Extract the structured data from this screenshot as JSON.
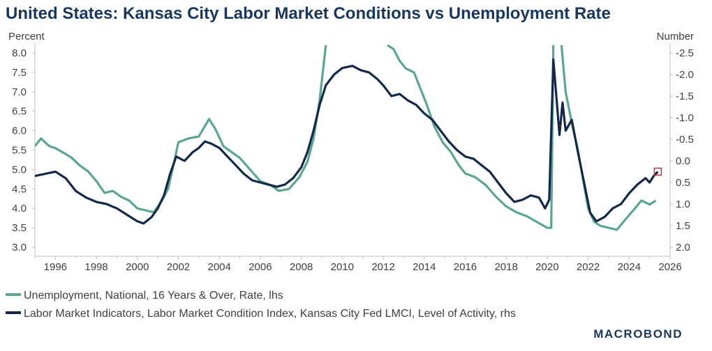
{
  "title": "United States: Kansas City Labor Market Conditions vs Unemployment Rate",
  "colors": {
    "title": "#17375e",
    "teal": "#5aa68e",
    "navy": "#13294b",
    "marker": "#d32f2f"
  },
  "legend": [
    {
      "label": "Unemployment, National, 16 Years & Over, Rate, lhs",
      "color": "#5aa68e"
    },
    {
      "label": "Labor Market Indicators, Labor Market Condition Index, Kansas City Fed LMCI, Level of Activity, rhs",
      "color": "#13294b"
    }
  ],
  "brand": "MACROBOND",
  "chart_data": {
    "type": "line",
    "xlim": [
      1995,
      2026
    ],
    "x_ticks": [
      "1996",
      "1998",
      "2000",
      "2002",
      "2004",
      "2006",
      "2008",
      "2010",
      "2012",
      "2014",
      "2016",
      "2018",
      "2020",
      "2022",
      "2024",
      "2026"
    ],
    "left_axis": {
      "label": "Percent",
      "ylim": [
        3.0,
        8.0
      ],
      "ticks": [
        "8.0",
        "7.5",
        "7.0",
        "6.5",
        "6.0",
        "5.5",
        "5.0",
        "4.5",
        "4.0",
        "3.5",
        "3.0"
      ]
    },
    "right_axis": {
      "label": "Number",
      "inverted": true,
      "ylim": [
        -2.5,
        2.0
      ],
      "ticks": [
        "-2.5",
        "-2.0",
        "-1.5",
        "-1.0",
        "-0.5",
        "0.0",
        "0.5",
        "1.0",
        "1.5",
        "2.0"
      ]
    },
    "series": [
      {
        "name": "Unemployment, National, 16 Years & Over, Rate, lhs",
        "axis": "left",
        "points": [
          [
            1995.0,
            5.6
          ],
          [
            1995.3,
            5.8
          ],
          [
            1995.7,
            5.6
          ],
          [
            1996.0,
            5.55
          ],
          [
            1996.5,
            5.4
          ],
          [
            1996.8,
            5.3
          ],
          [
            1997.2,
            5.1
          ],
          [
            1997.6,
            4.95
          ],
          [
            1998.0,
            4.7
          ],
          [
            1998.4,
            4.4
          ],
          [
            1998.8,
            4.45
          ],
          [
            1999.2,
            4.3
          ],
          [
            1999.6,
            4.2
          ],
          [
            2000.0,
            4.0
          ],
          [
            2000.4,
            3.95
          ],
          [
            2000.8,
            3.9
          ],
          [
            2001.2,
            4.2
          ],
          [
            2001.5,
            4.5
          ],
          [
            2001.8,
            5.2
          ],
          [
            2002.0,
            5.7
          ],
          [
            2002.5,
            5.8
          ],
          [
            2003.0,
            5.85
          ],
          [
            2003.5,
            6.3
          ],
          [
            2003.8,
            6.05
          ],
          [
            2004.2,
            5.6
          ],
          [
            2004.6,
            5.45
          ],
          [
            2005.0,
            5.3
          ],
          [
            2005.5,
            5.0
          ],
          [
            2006.0,
            4.7
          ],
          [
            2006.5,
            4.6
          ],
          [
            2006.9,
            4.45
          ],
          [
            2007.4,
            4.5
          ],
          [
            2007.9,
            4.8
          ],
          [
            2008.3,
            5.2
          ],
          [
            2008.6,
            5.8
          ],
          [
            2008.9,
            6.8
          ],
          [
            2009.2,
            8.2
          ]
        ],
        "points_2": [
          [
            2012.2,
            8.2
          ],
          [
            2012.5,
            8.1
          ],
          [
            2012.8,
            7.8
          ],
          [
            2013.1,
            7.6
          ],
          [
            2013.5,
            7.5
          ],
          [
            2013.8,
            7.1
          ],
          [
            2014.1,
            6.7
          ],
          [
            2014.5,
            6.1
          ],
          [
            2014.9,
            5.7
          ],
          [
            2015.3,
            5.45
          ],
          [
            2015.7,
            5.1
          ],
          [
            2016.0,
            4.9
          ],
          [
            2016.5,
            4.8
          ],
          [
            2017.0,
            4.6
          ],
          [
            2017.5,
            4.3
          ],
          [
            2018.0,
            4.05
          ],
          [
            2018.5,
            3.9
          ],
          [
            2019.0,
            3.8
          ],
          [
            2019.5,
            3.65
          ],
          [
            2020.0,
            3.5
          ],
          [
            2020.2,
            3.5
          ],
          [
            2020.3,
            8.2
          ]
        ],
        "points_3": [
          [
            2020.7,
            8.2
          ],
          [
            2020.9,
            7.0
          ],
          [
            2021.2,
            6.2
          ],
          [
            2021.5,
            5.5
          ],
          [
            2021.8,
            4.6
          ],
          [
            2022.0,
            4.0
          ],
          [
            2022.3,
            3.65
          ],
          [
            2022.6,
            3.55
          ],
          [
            2023.0,
            3.5
          ],
          [
            2023.4,
            3.45
          ],
          [
            2023.8,
            3.7
          ],
          [
            2024.2,
            3.95
          ],
          [
            2024.6,
            4.2
          ],
          [
            2025.0,
            4.1
          ],
          [
            2025.3,
            4.2
          ]
        ]
      },
      {
        "name": "Labor Market Indicators, Labor Market Condition Index, Kansas City Fed LMCI, Level of Activity, rhs",
        "axis": "right",
        "points": [
          [
            1995.0,
            0.35
          ],
          [
            1995.5,
            0.3
          ],
          [
            1996.0,
            0.25
          ],
          [
            1996.5,
            0.4
          ],
          [
            1997.0,
            0.7
          ],
          [
            1997.5,
            0.85
          ],
          [
            1998.0,
            0.95
          ],
          [
            1998.5,
            1.0
          ],
          [
            1999.0,
            1.1
          ],
          [
            1999.5,
            1.25
          ],
          [
            2000.0,
            1.4
          ],
          [
            2000.3,
            1.45
          ],
          [
            2000.7,
            1.3
          ],
          [
            2001.0,
            1.1
          ],
          [
            2001.3,
            0.8
          ],
          [
            2001.6,
            0.3
          ],
          [
            2001.9,
            -0.1
          ],
          [
            2002.3,
            0.0
          ],
          [
            2002.7,
            -0.2
          ],
          [
            2003.0,
            -0.3
          ],
          [
            2003.3,
            -0.45
          ],
          [
            2003.6,
            -0.4
          ],
          [
            2004.0,
            -0.3
          ],
          [
            2004.4,
            -0.1
          ],
          [
            2004.8,
            0.1
          ],
          [
            2005.2,
            0.3
          ],
          [
            2005.6,
            0.45
          ],
          [
            2006.0,
            0.5
          ],
          [
            2006.4,
            0.55
          ],
          [
            2006.8,
            0.6
          ],
          [
            2007.2,
            0.55
          ],
          [
            2007.6,
            0.4
          ],
          [
            2008.0,
            0.15
          ],
          [
            2008.3,
            -0.2
          ],
          [
            2008.6,
            -0.7
          ],
          [
            2008.9,
            -1.3
          ],
          [
            2009.2,
            -1.75
          ],
          [
            2009.6,
            -2.0
          ],
          [
            2010.0,
            -2.15
          ],
          [
            2010.5,
            -2.2
          ],
          [
            2010.9,
            -2.1
          ],
          [
            2011.3,
            -2.05
          ],
          [
            2011.7,
            -1.9
          ],
          [
            2012.0,
            -1.75
          ],
          [
            2012.4,
            -1.5
          ],
          [
            2012.8,
            -1.55
          ],
          [
            2013.2,
            -1.4
          ],
          [
            2013.6,
            -1.3
          ],
          [
            2014.0,
            -1.1
          ],
          [
            2014.4,
            -0.95
          ],
          [
            2014.8,
            -0.7
          ],
          [
            2015.2,
            -0.45
          ],
          [
            2015.6,
            -0.25
          ],
          [
            2016.0,
            -0.1
          ],
          [
            2016.4,
            -0.05
          ],
          [
            2016.8,
            0.1
          ],
          [
            2017.2,
            0.25
          ],
          [
            2017.6,
            0.5
          ],
          [
            2018.0,
            0.75
          ],
          [
            2018.4,
            0.95
          ],
          [
            2018.8,
            0.9
          ],
          [
            2019.2,
            0.8
          ],
          [
            2019.6,
            0.85
          ],
          [
            2019.9,
            1.1
          ],
          [
            2020.1,
            0.9
          ],
          [
            2020.3,
            -2.35
          ],
          [
            2020.5,
            -1.2
          ],
          [
            2020.6,
            -0.6
          ],
          [
            2020.75,
            -1.35
          ],
          [
            2020.9,
            -0.7
          ],
          [
            2021.2,
            -0.95
          ],
          [
            2021.5,
            -0.2
          ],
          [
            2021.8,
            0.5
          ],
          [
            2022.1,
            1.2
          ],
          [
            2022.4,
            1.4
          ],
          [
            2022.8,
            1.3
          ],
          [
            2023.2,
            1.1
          ],
          [
            2023.6,
            1.0
          ],
          [
            2024.0,
            0.75
          ],
          [
            2024.4,
            0.55
          ],
          [
            2024.8,
            0.4
          ],
          [
            2025.0,
            0.5
          ],
          [
            2025.2,
            0.35
          ],
          [
            2025.4,
            0.25
          ]
        ]
      }
    ],
    "marker": {
      "x": 2025.4,
      "value": 0.25,
      "axis": "right"
    }
  }
}
